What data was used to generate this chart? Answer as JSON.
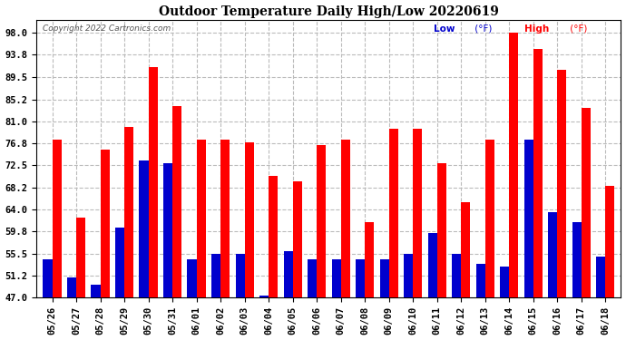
{
  "title": "Outdoor Temperature Daily High/Low 20220619",
  "copyright": "Copyright 2022 Cartronics.com",
  "dates": [
    "05/26",
    "05/27",
    "05/28",
    "05/29",
    "05/30",
    "05/31",
    "06/01",
    "06/02",
    "06/03",
    "06/04",
    "06/05",
    "06/06",
    "06/07",
    "06/08",
    "06/09",
    "06/10",
    "06/11",
    "06/12",
    "06/13",
    "06/14",
    "06/15",
    "06/16",
    "06/17",
    "06/18"
  ],
  "highs": [
    77.5,
    62.5,
    75.5,
    80.0,
    91.5,
    84.0,
    77.5,
    77.5,
    77.0,
    70.5,
    69.5,
    76.5,
    77.5,
    61.5,
    79.5,
    79.5,
    73.0,
    65.5,
    77.5,
    98.0,
    95.0,
    91.0,
    83.5,
    68.5
  ],
  "lows": [
    54.5,
    51.0,
    49.5,
    60.5,
    73.5,
    73.0,
    54.5,
    55.5,
    55.5,
    47.5,
    56.0,
    54.5,
    54.5,
    54.5,
    54.5,
    55.5,
    59.5,
    55.5,
    53.5,
    53.0,
    77.5,
    63.5,
    61.5,
    55.0
  ],
  "high_color": "#ff0000",
  "low_color": "#0000cd",
  "bg_color": "#ffffff",
  "ylim_min": 47.0,
  "ylim_max": 100.5,
  "yticks": [
    47.0,
    51.2,
    55.5,
    59.8,
    64.0,
    68.2,
    72.5,
    76.8,
    81.0,
    85.2,
    89.5,
    93.8,
    98.0
  ],
  "ytick_labels": [
    "47.0",
    "51.2",
    "55.5",
    "59.8",
    "64.0",
    "68.2",
    "72.5",
    "76.8",
    "81.0",
    "85.2",
    "89.5",
    "93.8",
    "98.0"
  ],
  "bar_width": 0.38,
  "figwidth": 6.9,
  "figheight": 3.75,
  "dpi": 100
}
